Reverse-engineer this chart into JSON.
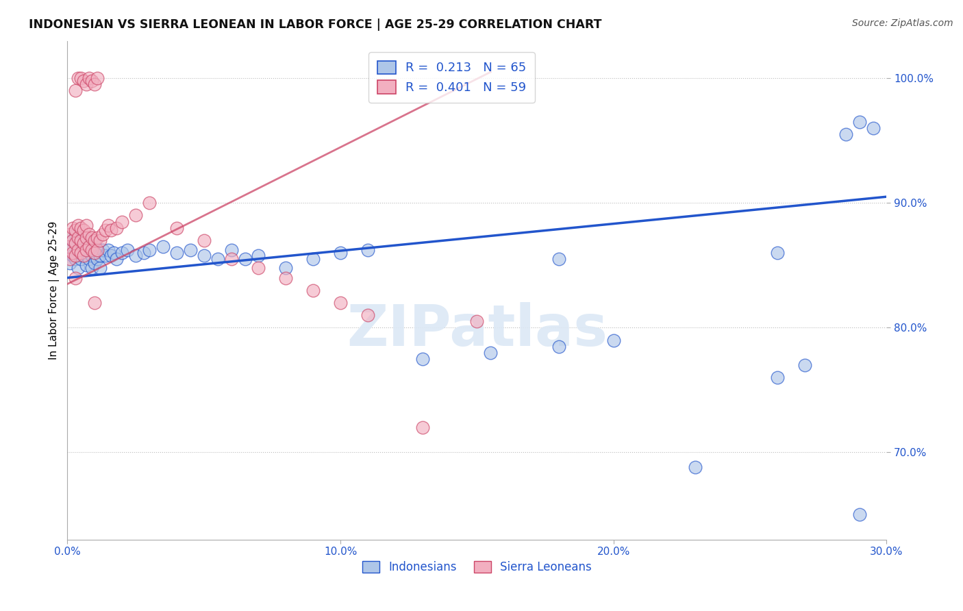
{
  "title": "INDONESIAN VS SIERRA LEONEAN IN LABOR FORCE | AGE 25-29 CORRELATION CHART",
  "source": "Source: ZipAtlas.com",
  "ylabel": "In Labor Force | Age 25-29",
  "xlim": [
    0.0,
    0.3
  ],
  "ylim": [
    0.63,
    1.03
  ],
  "ytick_labels": [
    "70.0%",
    "80.0%",
    "90.0%",
    "100.0%"
  ],
  "ytick_vals": [
    0.7,
    0.8,
    0.9,
    1.0
  ],
  "xtick_labels": [
    "0.0%",
    "10.0%",
    "20.0%",
    "30.0%"
  ],
  "xtick_vals": [
    0.0,
    0.1,
    0.2,
    0.3
  ],
  "blue_R": 0.213,
  "blue_N": 65,
  "pink_R": 0.401,
  "pink_N": 59,
  "blue_color": "#aec6e8",
  "pink_color": "#f2afc0",
  "blue_line_color": "#2255cc",
  "pink_line_color": "#cc4466",
  "legend_blue_label": "Indonesians",
  "legend_pink_label": "Sierra Leoneans",
  "watermark": "ZIPatlas",
  "blue_line_x0": 0.0,
  "blue_line_y0": 0.84,
  "blue_line_x1": 0.3,
  "blue_line_y1": 0.905,
  "pink_line_x0": 0.0,
  "pink_line_y0": 0.835,
  "pink_line_x1": 0.155,
  "pink_line_y1": 1.005,
  "blue_x": [
    0.001,
    0.001,
    0.002,
    0.002,
    0.003,
    0.003,
    0.003,
    0.004,
    0.004,
    0.004,
    0.005,
    0.005,
    0.005,
    0.006,
    0.006,
    0.007,
    0.007,
    0.007,
    0.008,
    0.008,
    0.009,
    0.009,
    0.01,
    0.01,
    0.01,
    0.011,
    0.011,
    0.012,
    0.012,
    0.013,
    0.014,
    0.015,
    0.016,
    0.017,
    0.018,
    0.02,
    0.022,
    0.025,
    0.028,
    0.03,
    0.035,
    0.04,
    0.045,
    0.05,
    0.055,
    0.06,
    0.065,
    0.07,
    0.08,
    0.09,
    0.1,
    0.11,
    0.13,
    0.155,
    0.18,
    0.2,
    0.23,
    0.26,
    0.27,
    0.285,
    0.29,
    0.295,
    0.18,
    0.26,
    0.29
  ],
  "blue_y": [
    0.852,
    0.862,
    0.858,
    0.87,
    0.855,
    0.868,
    0.875,
    0.848,
    0.86,
    0.87,
    0.855,
    0.862,
    0.87,
    0.858,
    0.865,
    0.85,
    0.862,
    0.87,
    0.855,
    0.865,
    0.848,
    0.858,
    0.852,
    0.86,
    0.868,
    0.855,
    0.862,
    0.848,
    0.858,
    0.862,
    0.858,
    0.862,
    0.858,
    0.86,
    0.855,
    0.86,
    0.862,
    0.858,
    0.86,
    0.862,
    0.865,
    0.86,
    0.862,
    0.858,
    0.855,
    0.862,
    0.855,
    0.858,
    0.848,
    0.855,
    0.86,
    0.862,
    0.775,
    0.78,
    0.785,
    0.79,
    0.688,
    0.76,
    0.77,
    0.955,
    0.965,
    0.96,
    0.855,
    0.86,
    0.65
  ],
  "pink_x": [
    0.001,
    0.001,
    0.001,
    0.002,
    0.002,
    0.002,
    0.003,
    0.003,
    0.003,
    0.004,
    0.004,
    0.004,
    0.005,
    0.005,
    0.005,
    0.006,
    0.006,
    0.006,
    0.007,
    0.007,
    0.007,
    0.008,
    0.008,
    0.009,
    0.009,
    0.01,
    0.01,
    0.011,
    0.011,
    0.012,
    0.013,
    0.014,
    0.015,
    0.016,
    0.018,
    0.02,
    0.025,
    0.03,
    0.04,
    0.05,
    0.06,
    0.07,
    0.08,
    0.09,
    0.1,
    0.11,
    0.13,
    0.15,
    0.003,
    0.004,
    0.005,
    0.006,
    0.007,
    0.008,
    0.009,
    0.01,
    0.011,
    0.003,
    0.01
  ],
  "pink_y": [
    0.855,
    0.865,
    0.875,
    0.86,
    0.87,
    0.88,
    0.858,
    0.868,
    0.878,
    0.862,
    0.872,
    0.882,
    0.86,
    0.87,
    0.88,
    0.858,
    0.868,
    0.878,
    0.862,
    0.872,
    0.882,
    0.865,
    0.875,
    0.862,
    0.872,
    0.86,
    0.87,
    0.862,
    0.872,
    0.87,
    0.875,
    0.878,
    0.882,
    0.878,
    0.88,
    0.885,
    0.89,
    0.9,
    0.88,
    0.87,
    0.855,
    0.848,
    0.84,
    0.83,
    0.82,
    0.81,
    0.72,
    0.805,
    0.99,
    1.0,
    1.0,
    0.998,
    0.995,
    1.0,
    0.998,
    0.995,
    1.0,
    0.84,
    0.82
  ]
}
